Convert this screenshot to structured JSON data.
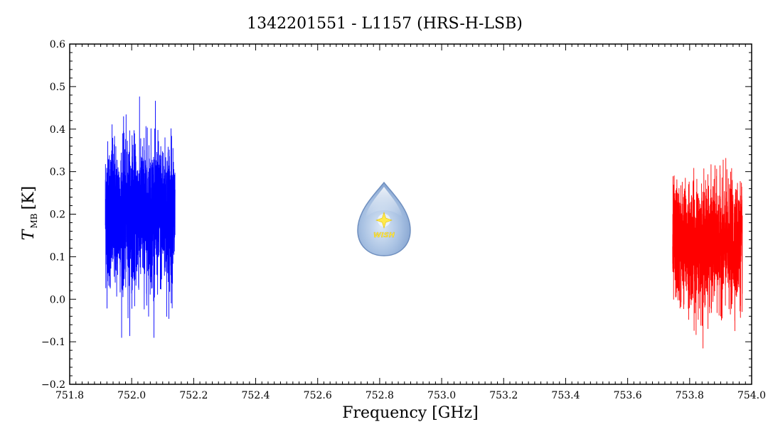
{
  "chart_data": {
    "type": "line",
    "title": "1342201551 - L1157 (HRS-H-LSB)",
    "xlabel": "Frequency [GHz]",
    "ylabel": "T",
    "ylabel_sub": "MB",
    "ylabel_unit": "[K]",
    "xlim": [
      751.8,
      754.0
    ],
    "ylim": [
      -0.2,
      0.6
    ],
    "x_ticks": [
      "751.8",
      "752.0",
      "752.2",
      "752.4",
      "752.6",
      "752.8",
      "753.0",
      "753.2",
      "753.4",
      "753.6",
      "753.8",
      "754.0"
    ],
    "y_ticks": [
      "0.6",
      "0.5",
      "0.4",
      "0.3",
      "0.2",
      "0.1",
      "0.0",
      "−0.1",
      "−0.2"
    ],
    "grid": false,
    "series": [
      {
        "color": "#0000ff",
        "x_start": 751.915,
        "x_end": 752.14,
        "mean": 0.2,
        "approx_min": -0.09,
        "approx_max": 0.5
      },
      {
        "color": "#ff0000",
        "x_start": 753.745,
        "x_end": 753.97,
        "mean": 0.13,
        "approx_min": -0.115,
        "approx_max": 0.36
      }
    ],
    "logo": {
      "text": "WISH",
      "x": 752.81,
      "y": 0.16
    }
  }
}
